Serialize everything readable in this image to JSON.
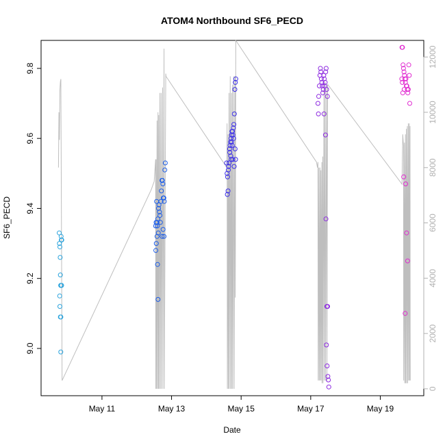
{
  "chart_data": {
    "type": "scatter",
    "title": "ATOM4 Northbound SF6_PECD",
    "xlabel": "Date",
    "ylabel": "SF6_PECD",
    "x_unit": "date",
    "xlim": [
      "2016-05-09T06:00",
      "2016-05-20T06:00"
    ],
    "ylim": [
      8.865,
      9.88
    ],
    "y2lim": [
      -250,
      12600
    ],
    "xticks": [
      {
        "label": "May 11",
        "x": "2016-05-11T00:00"
      },
      {
        "label": "May 13",
        "x": "2016-05-13T00:00"
      },
      {
        "label": "May 15",
        "x": "2016-05-15T00:00"
      },
      {
        "label": "May 17",
        "x": "2016-05-17T00:00"
      },
      {
        "label": "May 19",
        "x": "2016-05-19T00:00"
      }
    ],
    "yticks": [
      {
        "label": "9.0",
        "y": 9.0
      },
      {
        "label": "9.2",
        "y": 9.2
      },
      {
        "label": "9.4",
        "y": 9.4
      },
      {
        "label": "9.6",
        "y": 9.6
      },
      {
        "label": "9.8",
        "y": 9.8
      }
    ],
    "y2ticks": [
      {
        "label": "0",
        "y": 0
      },
      {
        "label": "2000",
        "y": 2000
      },
      {
        "label": "4000",
        "y": 4000
      },
      {
        "label": "6000",
        "y": 6000
      },
      {
        "label": "8000",
        "y": 8000
      },
      {
        "label": "10000",
        "y": 10000
      },
      {
        "label": "12000",
        "y": 12000
      }
    ],
    "grid": false,
    "legend": "none",
    "colors": {
      "altitude": "#bebebe",
      "axis": "#000000",
      "right_axis": "#b0b0b0",
      "flight_1": "#29a3dd",
      "flight_2": "#1a5ce8",
      "flight_3": "#3a2de8",
      "flight_4": "#8c28e0",
      "flight_5": "#e02ad0"
    },
    "series": [
      {
        "color": "#29a3dd",
        "points": [
          [
            "2016-05-09T18:30",
            9.33
          ],
          [
            "2016-05-09T18:40",
            9.3
          ],
          [
            "2016-05-09T19:00",
            9.29
          ],
          [
            "2016-05-09T19:10",
            9.26
          ],
          [
            "2016-05-09T19:20",
            9.21
          ],
          [
            "2016-05-09T19:30",
            9.18
          ],
          [
            "2016-05-09T19:40",
            9.18
          ],
          [
            "2016-05-09T20:10",
            9.18
          ],
          [
            "2016-05-09T18:50",
            9.15
          ],
          [
            "2016-05-09T19:00",
            9.12
          ],
          [
            "2016-05-09T19:40",
            9.09
          ],
          [
            "2016-05-09T19:20",
            9.09
          ],
          [
            "2016-05-09T19:50",
            9.32
          ],
          [
            "2016-05-09T20:00",
            9.31
          ],
          [
            "2016-05-09T20:15",
            9.31
          ],
          [
            "2016-05-09T19:35",
            8.99
          ]
        ]
      },
      {
        "color": "#1a5ce8",
        "points": [
          [
            "2016-05-12T13:00",
            9.35
          ],
          [
            "2016-05-12T13:20",
            9.36
          ],
          [
            "2016-05-12T13:40",
            9.42
          ],
          [
            "2016-05-12T14:00",
            9.36
          ],
          [
            "2016-05-12T14:10",
            9.35
          ],
          [
            "2016-05-12T14:30",
            9.37
          ],
          [
            "2016-05-12T14:50",
            9.33
          ],
          [
            "2016-05-12T15:00",
            9.4
          ],
          [
            "2016-05-12T15:20",
            9.41
          ],
          [
            "2016-05-12T15:40",
            9.39
          ],
          [
            "2016-05-12T16:00",
            9.38
          ],
          [
            "2016-05-12T16:20",
            9.36
          ],
          [
            "2016-05-12T16:40",
            9.42
          ],
          [
            "2016-05-12T17:00",
            9.45
          ],
          [
            "2016-05-12T17:20",
            9.48
          ],
          [
            "2016-05-12T17:40",
            9.48
          ],
          [
            "2016-05-12T18:00",
            9.47
          ],
          [
            "2016-05-12T18:20",
            9.43
          ],
          [
            "2016-05-12T18:40",
            9.43
          ],
          [
            "2016-05-12T19:00",
            9.42
          ],
          [
            "2016-05-12T19:20",
            9.51
          ],
          [
            "2016-05-12T19:40",
            9.53
          ],
          [
            "2016-05-12T14:00",
            9.32
          ],
          [
            "2016-05-12T13:30",
            9.3
          ],
          [
            "2016-05-12T13:10",
            9.28
          ],
          [
            "2016-05-12T14:20",
            9.24
          ],
          [
            "2016-05-12T14:40",
            9.14
          ],
          [
            "2016-05-12T17:30",
            9.32
          ],
          [
            "2016-05-12T18:10",
            9.34
          ],
          [
            "2016-05-12T18:50",
            9.32
          ]
        ]
      },
      {
        "color": "#3a2de8",
        "points": [
          [
            "2016-05-14T14:00",
            9.53
          ],
          [
            "2016-05-14T14:20",
            9.5
          ],
          [
            "2016-05-14T14:40",
            9.49
          ],
          [
            "2016-05-14T15:00",
            9.45
          ],
          [
            "2016-05-14T14:30",
            9.44
          ],
          [
            "2016-05-14T15:20",
            9.52
          ],
          [
            "2016-05-14T15:40",
            9.53
          ],
          [
            "2016-05-14T16:00",
            9.57
          ],
          [
            "2016-05-14T16:20",
            9.58
          ],
          [
            "2016-05-14T16:40",
            9.59
          ],
          [
            "2016-05-14T17:00",
            9.6
          ],
          [
            "2016-05-14T17:20",
            9.61
          ],
          [
            "2016-05-14T17:40",
            9.62
          ],
          [
            "2016-05-14T18:00",
            9.62
          ],
          [
            "2016-05-14T18:20",
            9.61
          ],
          [
            "2016-05-14T18:40",
            9.63
          ],
          [
            "2016-05-14T19:00",
            9.64
          ],
          [
            "2016-05-14T19:20",
            9.67
          ],
          [
            "2016-05-14T19:40",
            9.74
          ],
          [
            "2016-05-14T20:00",
            9.76
          ],
          [
            "2016-05-14T20:20",
            9.77
          ],
          [
            "2016-05-14T16:10",
            9.56
          ],
          [
            "2016-05-14T17:10",
            9.54
          ],
          [
            "2016-05-14T18:10",
            9.54
          ],
          [
            "2016-05-14T19:10",
            9.52
          ],
          [
            "2016-05-14T20:10",
            9.54
          ],
          [
            "2016-05-14T19:50",
            9.57
          ],
          [
            "2016-05-14T18:50",
            9.6
          ],
          [
            "2016-05-14T17:50",
            9.58
          ],
          [
            "2016-05-14T16:50",
            9.55
          ],
          [
            "2016-05-14T15:10",
            9.51
          ],
          [
            "2016-05-14T17:30",
            9.59
          ]
        ]
      },
      {
        "color": "#8c28e0",
        "points": [
          [
            "2016-05-17T05:00",
            9.7
          ],
          [
            "2016-05-17T05:30",
            9.72
          ],
          [
            "2016-05-17T06:00",
            9.75
          ],
          [
            "2016-05-17T06:20",
            9.78
          ],
          [
            "2016-05-17T06:40",
            9.8
          ],
          [
            "2016-05-17T07:00",
            9.79
          ],
          [
            "2016-05-17T07:20",
            9.77
          ],
          [
            "2016-05-17T07:40",
            9.76
          ],
          [
            "2016-05-17T08:00",
            9.75
          ],
          [
            "2016-05-17T08:20",
            9.73
          ],
          [
            "2016-05-17T08:40",
            9.74
          ],
          [
            "2016-05-17T09:00",
            9.78
          ],
          [
            "2016-05-17T09:20",
            9.77
          ],
          [
            "2016-05-17T09:40",
            9.75
          ],
          [
            "2016-05-17T10:00",
            9.76
          ],
          [
            "2016-05-17T10:20",
            9.79
          ],
          [
            "2016-05-17T10:40",
            9.8
          ],
          [
            "2016-05-17T11:00",
            9.74
          ],
          [
            "2016-05-17T11:30",
            9.72
          ],
          [
            "2016-05-17T05:20",
            9.67
          ],
          [
            "2016-05-17T09:10",
            9.67
          ],
          [
            "2016-05-17T10:10",
            9.61
          ],
          [
            "2016-05-17T10:30",
            9.37
          ],
          [
            "2016-05-17T11:10",
            9.12
          ],
          [
            "2016-05-17T11:40",
            9.12
          ],
          [
            "2016-05-17T10:50",
            9.01
          ],
          [
            "2016-05-17T11:20",
            8.95
          ],
          [
            "2016-05-17T11:50",
            8.92
          ],
          [
            "2016-05-17T12:10",
            8.91
          ],
          [
            "2016-05-17T12:30",
            8.89
          ]
        ]
      },
      {
        "color": "#e02ad0",
        "points": [
          [
            "2016-05-19T15:00",
            9.86
          ],
          [
            "2016-05-19T15:20",
            9.86
          ],
          [
            "2016-05-19T15:40",
            9.81
          ],
          [
            "2016-05-19T16:00",
            9.8
          ],
          [
            "2016-05-19T16:20",
            9.79
          ],
          [
            "2016-05-19T16:40",
            9.78
          ],
          [
            "2016-05-19T17:00",
            9.77
          ],
          [
            "2016-05-19T17:20",
            9.76
          ],
          [
            "2016-05-19T17:40",
            9.77
          ],
          [
            "2016-05-19T18:00",
            9.75
          ],
          [
            "2016-05-19T18:20",
            9.75
          ],
          [
            "2016-05-19T18:40",
            9.74
          ],
          [
            "2016-05-19T19:00",
            9.73
          ],
          [
            "2016-05-19T19:20",
            9.74
          ],
          [
            "2016-05-19T19:40",
            9.81
          ],
          [
            "2016-05-19T20:00",
            9.78
          ],
          [
            "2016-05-19T20:20",
            9.7
          ],
          [
            "2016-05-19T14:50",
            9.77
          ],
          [
            "2016-05-19T15:10",
            9.76
          ],
          [
            "2016-05-19T15:30",
            9.73
          ],
          [
            "2016-05-19T16:30",
            9.74
          ],
          [
            "2016-05-19T16:10",
            9.49
          ],
          [
            "2016-05-19T17:30",
            9.47
          ],
          [
            "2016-05-19T18:10",
            9.33
          ],
          [
            "2016-05-19T18:50",
            9.25
          ],
          [
            "2016-05-19T17:10",
            9.1
          ]
        ]
      }
    ],
    "altitude_trace": [
      [
        "2016-05-09T18:00",
        8000
      ],
      [
        "2016-05-09T18:20",
        10000
      ],
      [
        "2016-05-09T18:40",
        9000
      ],
      [
        "2016-05-09T19:00",
        10800
      ],
      [
        "2016-05-09T19:20",
        11100
      ],
      [
        "2016-05-09T19:40",
        11200
      ],
      [
        "2016-05-09T20:30",
        300
      ],
      [
        "2016-05-12T10:00",
        7200
      ],
      [
        "2016-05-12T12:00",
        7500
      ],
      [
        "2016-05-12T13:00",
        8300
      ],
      [
        "2016-05-12T13:10",
        0
      ],
      [
        "2016-05-12T13:20",
        8300
      ],
      [
        "2016-05-12T13:30",
        0
      ],
      [
        "2016-05-12T14:00",
        9700
      ],
      [
        "2016-05-12T14:10",
        0
      ],
      [
        "2016-05-12T14:40",
        10000
      ],
      [
        "2016-05-12T14:50",
        0
      ],
      [
        "2016-05-12T15:10",
        9900
      ],
      [
        "2016-05-12T15:20",
        0
      ],
      [
        "2016-05-12T16:00",
        10700
      ],
      [
        "2016-05-12T16:10",
        0
      ],
      [
        "2016-05-12T16:50",
        10700
      ],
      [
        "2016-05-12T17:00",
        0
      ],
      [
        "2016-05-12T17:50",
        10900
      ],
      [
        "2016-05-12T18:00",
        0
      ],
      [
        "2016-05-12T18:50",
        12300
      ],
      [
        "2016-05-12T19:00",
        0
      ],
      [
        "2016-05-12T20:00",
        11400
      ],
      [
        "2016-05-12T20:10",
        11300
      ],
      [
        "2016-05-14T14:10",
        8000
      ],
      [
        "2016-05-14T14:20",
        9600
      ],
      [
        "2016-05-14T14:30",
        0
      ],
      [
        "2016-05-14T15:00",
        9200
      ],
      [
        "2016-05-14T15:10",
        0
      ],
      [
        "2016-05-14T15:40",
        10700
      ],
      [
        "2016-05-14T15:50",
        0
      ],
      [
        "2016-05-14T16:30",
        11300
      ],
      [
        "2016-05-14T16:40",
        0
      ],
      [
        "2016-05-14T17:20",
        10700
      ],
      [
        "2016-05-14T17:30",
        0
      ],
      [
        "2016-05-14T18:00",
        11000
      ],
      [
        "2016-05-14T18:10",
        0
      ],
      [
        "2016-05-14T19:00",
        11300
      ],
      [
        "2016-05-14T19:10",
        0
      ],
      [
        "2016-05-14T19:50",
        11300
      ],
      [
        "2016-05-14T20:00",
        3300
      ],
      [
        "2016-05-14T20:20",
        12600
      ],
      [
        "2016-05-17T04:00",
        8200
      ],
      [
        "2016-05-17T04:20",
        8100
      ],
      [
        "2016-05-17T04:40",
        8000
      ],
      [
        "2016-05-17T05:00",
        8200
      ],
      [
        "2016-05-17T05:10",
        300
      ],
      [
        "2016-05-17T05:40",
        8000
      ],
      [
        "2016-05-17T05:50",
        300
      ],
      [
        "2016-05-17T06:20",
        8000
      ],
      [
        "2016-05-17T06:30",
        300
      ],
      [
        "2016-05-17T07:00",
        7900
      ],
      [
        "2016-05-17T07:10",
        300
      ],
      [
        "2016-05-17T07:40",
        8200
      ],
      [
        "2016-05-17T07:50",
        200
      ],
      [
        "2016-05-17T08:20",
        8400
      ],
      [
        "2016-05-17T08:30",
        200
      ],
      [
        "2016-05-17T09:10",
        11100
      ],
      [
        "2016-05-17T09:20",
        300
      ],
      [
        "2016-05-17T10:00",
        11100
      ],
      [
        "2016-05-17T10:10",
        300
      ],
      [
        "2016-05-17T11:00",
        11000
      ],
      [
        "2016-05-17T11:10",
        300
      ],
      [
        "2016-05-17T11:40",
        11000
      ],
      [
        "2016-05-17T11:50",
        11000
      ],
      [
        "2016-05-19T15:00",
        7400
      ],
      [
        "2016-05-19T15:30",
        9200
      ],
      [
        "2016-05-19T16:00",
        8800
      ],
      [
        "2016-05-19T16:10",
        300
      ],
      [
        "2016-05-19T16:40",
        8900
      ],
      [
        "2016-05-19T16:50",
        200
      ],
      [
        "2016-05-19T17:20",
        9200
      ],
      [
        "2016-05-19T17:30",
        200
      ],
      [
        "2016-05-19T18:00",
        9400
      ],
      [
        "2016-05-19T18:10",
        200
      ],
      [
        "2016-05-19T18:40",
        9500
      ],
      [
        "2016-05-19T18:50",
        200
      ],
      [
        "2016-05-19T19:20",
        9600
      ],
      [
        "2016-05-19T19:30",
        300
      ],
      [
        "2016-05-19T20:00",
        9600
      ],
      [
        "2016-05-19T20:10",
        300
      ],
      [
        "2016-05-19T20:30",
        9500
      ],
      [
        "2016-05-19T20:40",
        300
      ]
    ]
  }
}
